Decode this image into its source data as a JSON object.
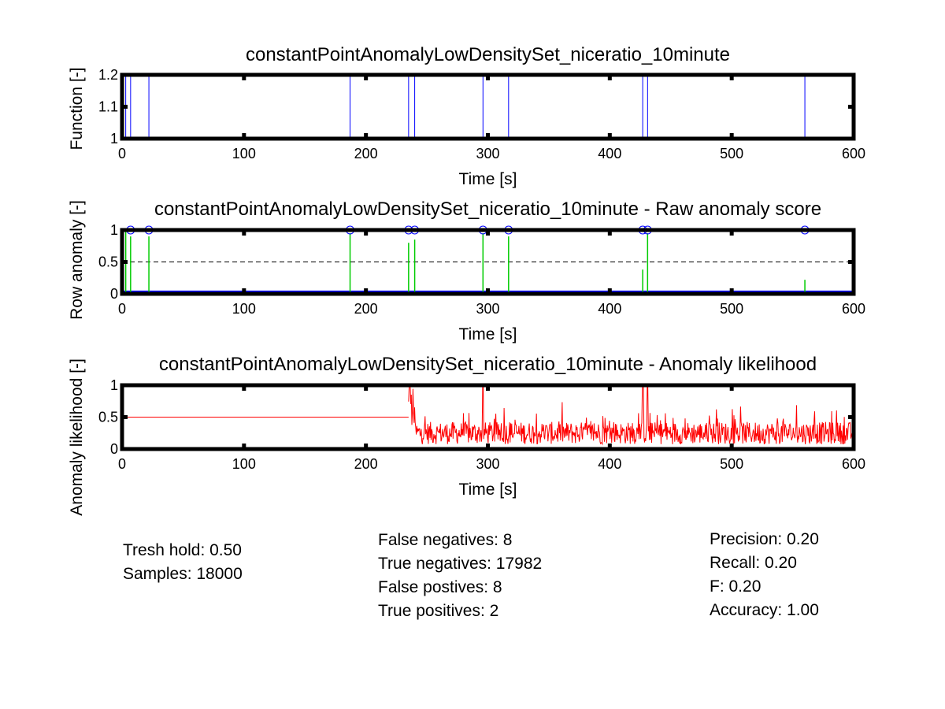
{
  "chart_data": [
    {
      "type": "line",
      "title": "constantPointAnomalyLowDensitySet_niceratio_10minute",
      "xlabel": "Time [s]",
      "ylabel": "Function [-]",
      "xlim": [
        0,
        600
      ],
      "ylim": [
        1,
        1.2
      ],
      "xticks": [
        "0",
        "100",
        "200",
        "300",
        "400",
        "500",
        "600"
      ],
      "yticks": [
        "1",
        "1.1",
        "1.2"
      ],
      "grid": false,
      "series": [
        {
          "color": "#0000ff",
          "spikes_x": [
            3,
            7,
            22,
            187,
            235,
            240,
            296,
            317,
            427,
            431,
            560
          ]
        }
      ]
    },
    {
      "type": "line",
      "title": "constantPointAnomalyLowDensitySet_niceratio_10minute - Raw anomaly score",
      "xlabel": "Time [s]",
      "ylabel": "Row anomaly [-]",
      "xlim": [
        0,
        600
      ],
      "ylim": [
        0,
        1
      ],
      "xticks": [
        "0",
        "100",
        "200",
        "300",
        "400",
        "500",
        "600"
      ],
      "yticks": [
        "0",
        "0.5",
        "1"
      ],
      "threshold": 0.5,
      "grid": false,
      "series": [
        {
          "color": "#00cc00",
          "x": [
            3,
            7,
            22,
            187,
            235,
            240,
            296,
            317,
            427,
            431,
            560
          ],
          "values": [
            1,
            0.9,
            0.9,
            0.95,
            0.8,
            0.85,
            0.95,
            0.9,
            0.38,
            0.95,
            0.22
          ]
        },
        {
          "color": "#0000ff",
          "marker": "circle",
          "x": [
            7,
            22,
            187,
            235,
            240,
            296,
            317,
            427,
            431,
            560
          ],
          "values": [
            1,
            1,
            1,
            1,
            1,
            1,
            1,
            1,
            1,
            1
          ]
        }
      ]
    },
    {
      "type": "line",
      "title": "constantPointAnomalyLowDensitySet_niceratio_10minute - Anomaly likelihood",
      "xlabel": "Time [s]",
      "ylabel": "Anomaly likelihood [-]",
      "xlim": [
        0,
        600
      ],
      "ylim": [
        0,
        1
      ],
      "xticks": [
        "0",
        "100",
        "200",
        "300",
        "400",
        "500",
        "600"
      ],
      "yticks": [
        "0",
        "0.5",
        "1"
      ],
      "grid": false,
      "series": [
        {
          "color": "#ff0000",
          "flat_value": 0.5,
          "flat_until": 235,
          "noise_center": 0.25,
          "peaks_x": [
            236,
            296,
            427,
            431
          ]
        }
      ]
    }
  ],
  "stats": {
    "col1": [
      "Tresh hold: 0.50",
      "Samples: 18000"
    ],
    "col2": [
      "False negatives: 8",
      "True negatives: 17982",
      "False postives: 8",
      "True positives: 2"
    ],
    "col3": [
      "Precision: 0.20",
      "Recall: 0.20",
      "F: 0.20",
      "Accuracy: 1.00"
    ]
  }
}
